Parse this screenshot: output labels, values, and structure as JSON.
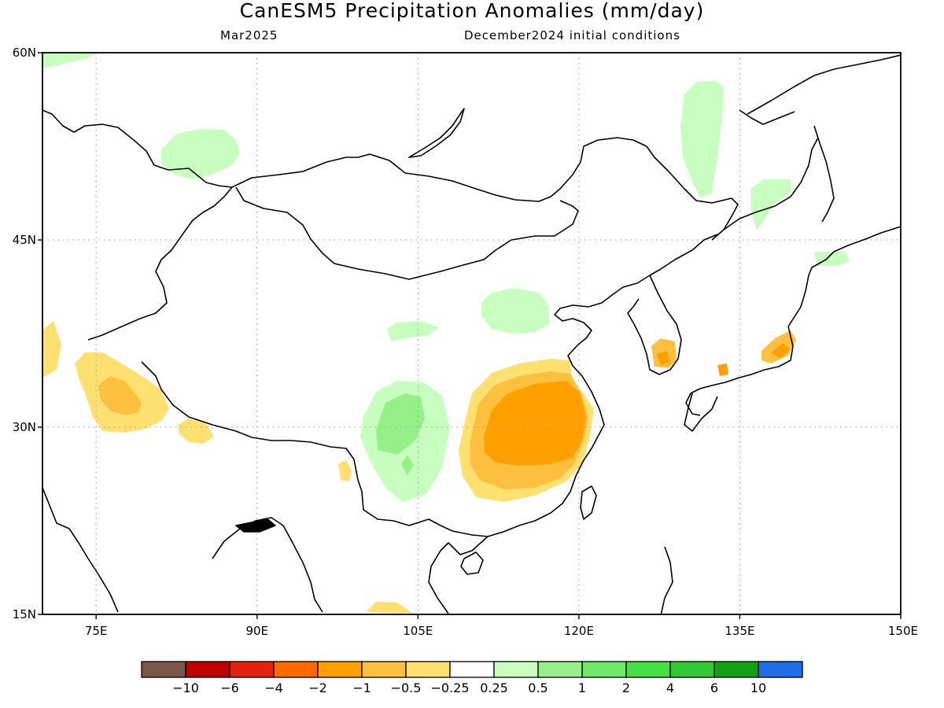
{
  "title": "CanESM5 Precipitation Anomalies (mm/day)",
  "subtitle_left": "Mar2025",
  "subtitle_right": "December2024 initial conditions",
  "lat_labels": [
    {
      "value": 60,
      "text": "60N"
    },
    {
      "value": 45,
      "text": "45N"
    },
    {
      "value": 30,
      "text": "30N"
    },
    {
      "value": 15,
      "text": "15N"
    }
  ],
  "lon_labels": [
    {
      "value": 75,
      "text": "75E"
    },
    {
      "value": 90,
      "text": "90E"
    },
    {
      "value": 105,
      "text": "105E"
    },
    {
      "value": 120,
      "text": "120E"
    },
    {
      "value": 135,
      "text": "135E"
    },
    {
      "value": 150,
      "text": "150E"
    }
  ],
  "map_extent": {
    "lon_min": 70,
    "lon_max": 150,
    "lat_min": 15,
    "lat_max": 60
  },
  "colorbar": {
    "colors": [
      "#7a5548",
      "#c00000",
      "#e52010",
      "#ff6a00",
      "#ffa000",
      "#ffc040",
      "#ffe070",
      "#ffffff",
      "#c8ffc0",
      "#96f08a",
      "#6ee866",
      "#46e046",
      "#32c832",
      "#14a014",
      "#1e6ee6"
    ],
    "labels": [
      "−10",
      "−6",
      "−4",
      "−2",
      "−1",
      "−0.5",
      "−0.25",
      "0.25",
      "0.5",
      "1",
      "2",
      "4",
      "6",
      "10"
    ]
  }
}
